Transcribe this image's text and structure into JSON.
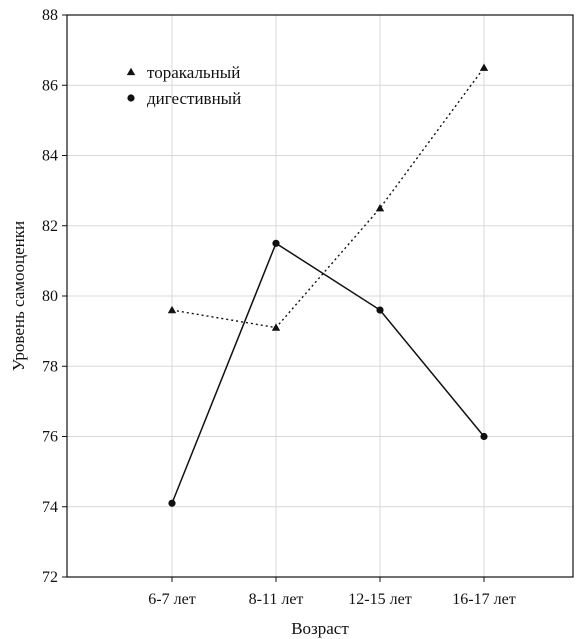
{
  "chart_data": {
    "type": "line",
    "categories": [
      "6-7 лет",
      "8-11 лет",
      "12-15 лет",
      "16-17 лет"
    ],
    "series": [
      {
        "name": "торакальный",
        "values": [
          79.6,
          79.1,
          82.5,
          86.5
        ],
        "marker": "triangle",
        "line_style": "dotted",
        "color": "#111111"
      },
      {
        "name": "дигестивный",
        "values": [
          74.1,
          81.5,
          79.6,
          76.0
        ],
        "marker": "circle",
        "line_style": "solid",
        "color": "#111111"
      }
    ],
    "title": "",
    "xlabel": "Возраст",
    "ylabel": "Уровень самооценки",
    "ylim": [
      72,
      88
    ],
    "yticks": [
      "72",
      "74",
      "76",
      "78",
      "80",
      "82",
      "84",
      "86",
      "88"
    ],
    "grid": true,
    "legend_position": "top-left"
  }
}
